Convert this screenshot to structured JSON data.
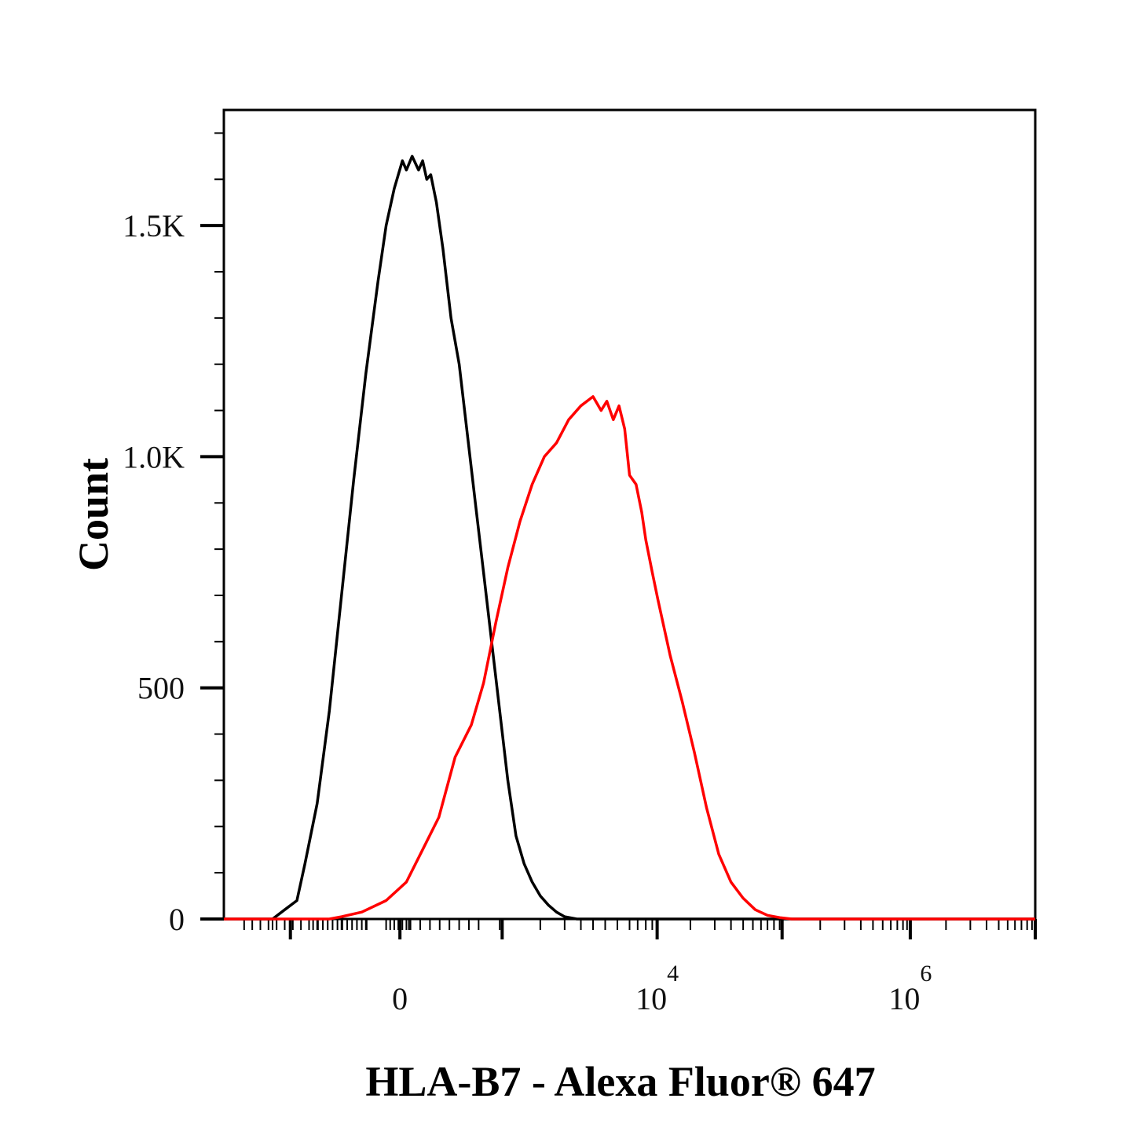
{
  "chart_data": {
    "type": "line",
    "subtype": "flow-cytometry-histogram",
    "title": "",
    "xlabel": "HLA-B7 - Alexa Fluor® 647",
    "ylabel": "Count",
    "x_scale": "biexponential",
    "ylim": [
      0,
      1750
    ],
    "y_ticks": [
      {
        "value": 0,
        "label": "0"
      },
      {
        "value": 500,
        "label": "500"
      },
      {
        "value": 1000,
        "label": "1.0K"
      },
      {
        "value": 1500,
        "label": "1.5K"
      }
    ],
    "x_ticks": [
      {
        "position": 0.217,
        "base": "0",
        "exp": ""
      },
      {
        "position": 0.534,
        "base": "10",
        "exp": "4"
      },
      {
        "position": 0.846,
        "base": "10",
        "exp": "6"
      }
    ],
    "grid": false,
    "legend": "none",
    "series": [
      {
        "color": "#000000",
        "x": [
          0.0,
          0.06,
          0.075,
          0.09,
          0.1,
          0.115,
          0.13,
          0.145,
          0.16,
          0.175,
          0.19,
          0.2,
          0.21,
          0.22,
          0.225,
          0.232,
          0.24,
          0.245,
          0.25,
          0.255,
          0.262,
          0.27,
          0.28,
          0.29,
          0.3,
          0.31,
          0.32,
          0.33,
          0.34,
          0.35,
          0.36,
          0.37,
          0.38,
          0.39,
          0.4,
          0.41,
          0.42,
          0.435,
          0.45,
          1.0
        ],
        "y": [
          0,
          0,
          20,
          40,
          120,
          250,
          450,
          700,
          950,
          1180,
          1380,
          1500,
          1580,
          1640,
          1620,
          1650,
          1620,
          1640,
          1600,
          1610,
          1550,
          1450,
          1300,
          1200,
          1050,
          900,
          750,
          600,
          450,
          300,
          180,
          120,
          80,
          50,
          30,
          15,
          5,
          0,
          0,
          0
        ]
      },
      {
        "color": "#ff0000",
        "x": [
          0.0,
          0.13,
          0.145,
          0.17,
          0.2,
          0.225,
          0.245,
          0.265,
          0.285,
          0.305,
          0.32,
          0.335,
          0.35,
          0.365,
          0.38,
          0.395,
          0.41,
          0.425,
          0.44,
          0.455,
          0.465,
          0.472,
          0.48,
          0.487,
          0.494,
          0.5,
          0.508,
          0.515,
          0.52,
          0.528,
          0.535,
          0.55,
          0.565,
          0.58,
          0.595,
          0.61,
          0.625,
          0.64,
          0.655,
          0.67,
          0.685,
          0.7,
          0.72,
          1.0
        ],
        "y": [
          0,
          0,
          5,
          15,
          40,
          80,
          150,
          220,
          350,
          420,
          510,
          640,
          760,
          860,
          940,
          1000,
          1030,
          1080,
          1110,
          1130,
          1100,
          1120,
          1080,
          1110,
          1060,
          960,
          940,
          880,
          820,
          750,
          690,
          570,
          470,
          360,
          240,
          140,
          80,
          45,
          20,
          8,
          3,
          0,
          0,
          0
        ]
      }
    ]
  }
}
